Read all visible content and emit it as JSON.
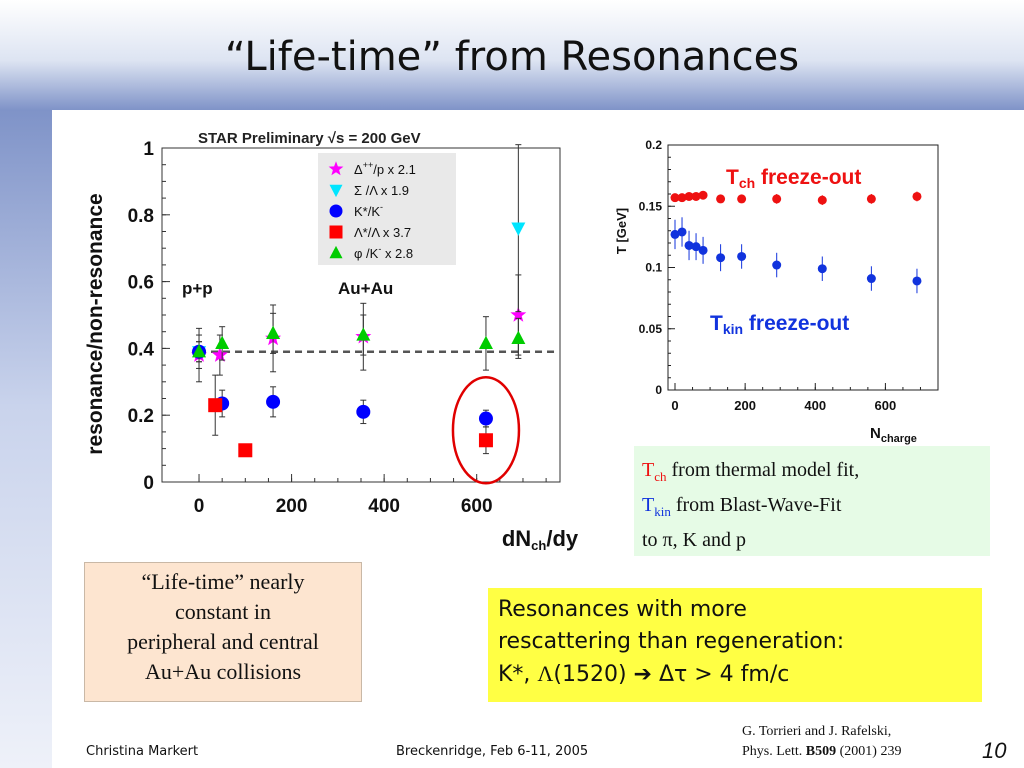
{
  "slide": {
    "title": "“Life-time” from Resonances",
    "footer_left": "Christina Markert",
    "footer_center": "Breckenridge, Feb 6-11, 2005",
    "page_number": "10",
    "reference_line1": "G. Torrieri and J. Rafelski,",
    "reference_line2_pre": "Phys. Lett. ",
    "reference_line2_bold": "B509",
    "reference_line2_post": " (2001) 239"
  },
  "boxes": {
    "lifetime_lines": [
      "“Life-time” nearly",
      "constant in",
      "peripheral and central",
      "Au+Au collisions"
    ],
    "resc_line1": "Resonances with more",
    "resc_line2": "rescattering than regeneration:",
    "resc_line3_a": "K*, ",
    "resc_lambda": "Λ",
    "resc_line3_b": "(1520)  ",
    "resc_arrow": "➔",
    "resc_delta_tau": " Δτ  > 4 fm/c",
    "thermal_T": "T",
    "thermal_ch": "ch",
    "thermal_l1": " from thermal model fit,",
    "thermal_kin": "kin",
    "thermal_l2": "  from Blast-Wave-Fit",
    "thermal_l3": "to π, K and p"
  },
  "colors": {
    "magenta": "#ff00ff",
    "cyan": "#00e5ff",
    "blue": "#0000ff",
    "red": "#ff0000",
    "green": "#00cc00",
    "freeze_red": "#ee1111",
    "freeze_blue": "#1133dd",
    "peach_box": "#fde5d0",
    "yellow_box": "#ffff44",
    "green_box": "#e6fbe6"
  },
  "chart_data": [
    {
      "type": "scatter",
      "title": "STAR Preliminary  √s = 200 GeV",
      "xlabel_main": "dN",
      "xlabel_sub": "ch",
      "xlabel_tail": "/dy",
      "ylabel": "resonance/non-resonance",
      "xlim": [
        -80,
        780
      ],
      "ylim": [
        0,
        1
      ],
      "xticks": [
        0,
        200,
        400,
        600
      ],
      "xtick_labels": [
        "0",
        "200",
        "400",
        "600"
      ],
      "yticks": [
        0,
        0.2,
        0.4,
        0.6,
        0.8,
        1
      ],
      "ytick_labels": [
        "0",
        "0.2",
        "0.4",
        "0.6",
        "0.8",
        "1"
      ],
      "reference_line_y": 0.39,
      "annotations": [
        "p+p",
        "Au+Au"
      ],
      "circled_point": {
        "x": 620,
        "y": 0.155
      },
      "legend_position": "top-right",
      "series": [
        {
          "name": "Δ⁺⁺/p  x 2.1",
          "label_main": "Δ",
          "label_sup": "++",
          "label_rest": "/p  x 2.1",
          "marker": "star",
          "color": "#ff00ff",
          "x": [
            0,
            45,
            160,
            355,
            690
          ],
          "y": [
            0.38,
            0.38,
            0.43,
            0.435,
            0.5
          ],
          "yerr": [
            0.08,
            0.06,
            0.1,
            0.1,
            0.12
          ]
        },
        {
          "name": "Σ /Λ   x 1.9",
          "label_main": "Σ /Λ   x 1.9",
          "label_sup": "",
          "label_rest": "",
          "marker": "triangle-down",
          "color": "#00e5ff",
          "x": [
            0,
            690
          ],
          "y": [
            0.39,
            0.76
          ],
          "yerr": [
            0.03,
            0.25
          ]
        },
        {
          "name": "K*/K⁻",
          "label_main": "K*/K",
          "label_sup": "-",
          "label_rest": "",
          "marker": "circle",
          "color": "#0000ff",
          "x": [
            0,
            50,
            160,
            355,
            620
          ],
          "y": [
            0.39,
            0.235,
            0.24,
            0.21,
            0.19
          ],
          "yerr": [
            0.03,
            0.04,
            0.045,
            0.035,
            0.025
          ]
        },
        {
          "name": "Λ*/Λ  x 3.7",
          "label_main": "Λ*/Λ  x 3.7",
          "label_sup": "",
          "label_rest": "",
          "marker": "square",
          "color": "#ff0000",
          "x": [
            35,
            100,
            620
          ],
          "y": [
            0.23,
            0.095,
            0.125
          ],
          "yerr": [
            0.09,
            0.0,
            0.04
          ]
        },
        {
          "name": "φ /K⁻  x 2.8",
          "label_main": "φ /K",
          "label_sup": "-",
          "label_rest": "  x 2.8",
          "marker": "triangle-up",
          "color": "#00cc00",
          "x": [
            0,
            50,
            160,
            355,
            620,
            690
          ],
          "y": [
            0.39,
            0.415,
            0.445,
            0.44,
            0.415,
            0.43
          ],
          "yerr": [
            0.05,
            0.05,
            0.06,
            0.06,
            0.08,
            0.06
          ]
        }
      ]
    },
    {
      "type": "scatter",
      "ylabel": "T [GeV]",
      "xlabel_main": "N",
      "xlabel_sub": "charge",
      "xlim": [
        -20,
        750
      ],
      "ylim": [
        0,
        0.2
      ],
      "xticks": [
        0,
        200,
        400,
        600
      ],
      "xtick_labels": [
        "0",
        "200",
        "400",
        "600"
      ],
      "yticks": [
        0,
        0.05,
        0.1,
        0.15,
        0.2
      ],
      "ytick_labels": [
        "0",
        "0.05",
        "0.1",
        "0.15",
        "0.2"
      ],
      "series": [
        {
          "name": "T_ch freeze-out",
          "label_main": "T",
          "label_sub": "ch",
          "label_rest": " freeze-out",
          "color": "#ee1111",
          "x": [
            0,
            20,
            40,
            60,
            80,
            130,
            190,
            290,
            420,
            560,
            690
          ],
          "y": [
            0.157,
            0.157,
            0.158,
            0.158,
            0.159,
            0.156,
            0.156,
            0.156,
            0.155,
            0.156,
            0.158
          ],
          "yerr": [
            0.003,
            0.003,
            0.003,
            0.003,
            0.003,
            0.003,
            0.003,
            0.004,
            0.004,
            0.004,
            0.004
          ]
        },
        {
          "name": "T_kin freeze-out",
          "label_main": "T",
          "label_sub": "kin",
          "label_rest": " freeze-out",
          "color": "#1133dd",
          "x": [
            0,
            20,
            40,
            60,
            80,
            130,
            190,
            290,
            420,
            560,
            690
          ],
          "y": [
            0.127,
            0.129,
            0.118,
            0.117,
            0.114,
            0.108,
            0.109,
            0.102,
            0.099,
            0.091,
            0.089
          ],
          "yerr": [
            0.012,
            0.012,
            0.012,
            0.011,
            0.011,
            0.011,
            0.01,
            0.01,
            0.01,
            0.01,
            0.01
          ]
        }
      ]
    }
  ]
}
